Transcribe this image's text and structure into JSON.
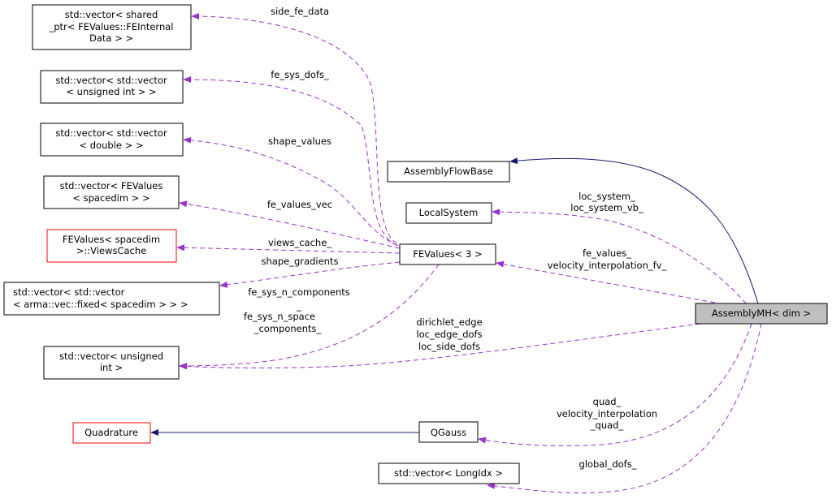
{
  "colors": {
    "usage_edge": "#9a32cd",
    "inheritance_edge": "#191970",
    "undocumented_border": "#ff0000",
    "focus_fill": "#bfbfbf"
  },
  "nodes": {
    "shared_ptr_vec": [
      "std::vector< shared",
      "_ptr< FEValues::FEInternal",
      "Data > >"
    ],
    "vec_vec_uint": [
      "std::vector< std::vector",
      "< unsigned int > >"
    ],
    "vec_vec_double": [
      "std::vector< std::vector",
      "< double > >"
    ],
    "vec_fevalues": [
      "std::vector< FEValues",
      "< spacedim > >"
    ],
    "views_cache": [
      "FEValues< spacedim",
      ">::ViewsCache"
    ],
    "vec_vec_arma": [
      "std::vector< std::vector",
      "< arma::vec::fixed< spacedim > > >"
    ],
    "vec_uint": [
      "std::vector< unsigned",
      "int >"
    ],
    "quadrature": "Quadrature",
    "assembly_flow_base": "AssemblyFlowBase",
    "local_system": "LocalSystem",
    "fevalues3": "FEValues< 3 >",
    "assembly_mh": "AssemblyMH< dim >",
    "qgauss": "QGauss",
    "vec_longidx": "std::vector< LongIdx >"
  },
  "edge_labels": {
    "side_fe_data": "side_fe_data",
    "fe_sys_dofs": "fe_sys_dofs_",
    "shape_values": "shape_values",
    "fe_values_vec": "fe_values_vec",
    "views_cache": "views_cache_",
    "shape_gradients": "shape_gradients",
    "fe_sys_n": [
      "fe_sys_n_components",
      "_",
      "fe_sys_n_space",
      "_components_"
    ],
    "dirichlet": [
      "dirichlet_edge",
      "loc_edge_dofs",
      "loc_side_dofs"
    ],
    "loc_system": [
      "loc_system_",
      "loc_system_vb_"
    ],
    "fe_values": [
      "fe_values_",
      "velocity_interpolation_fv_"
    ],
    "quad": [
      "quad_",
      "velocity_interpolation",
      "_quad_"
    ],
    "global_dofs": "global_dofs_"
  }
}
